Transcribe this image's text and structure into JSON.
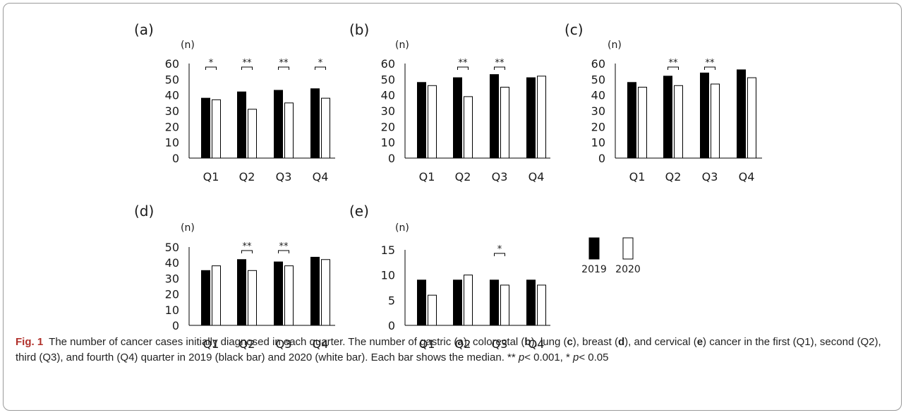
{
  "panels": [
    {
      "label": "(a)",
      "unit": "(n)"
    },
    {
      "label": "(b)",
      "unit": "(n)"
    },
    {
      "label": "(c)",
      "unit": "(n)"
    },
    {
      "label": "(d)",
      "unit": "(n)"
    },
    {
      "label": "(e)",
      "unit": "(n)"
    }
  ],
  "legend": {
    "label_2019": "2019",
    "label_2020": "2020"
  },
  "colors": {
    "bar_2019": "#000000",
    "bar_2020": "#ffffff",
    "bar_stroke": "#000000"
  },
  "chart_data": [
    {
      "type": "bar",
      "title": "(a)",
      "ylabel": "(n)",
      "categories": [
        "Q1",
        "Q2",
        "Q3",
        "Q4"
      ],
      "ylim": [
        0,
        60
      ],
      "yticks": [
        0,
        10,
        20,
        30,
        40,
        50,
        60
      ],
      "series": [
        {
          "name": "2019",
          "values": [
            38,
            42,
            43,
            44
          ]
        },
        {
          "name": "2020",
          "values": [
            37,
            31,
            35,
            38
          ]
        }
      ],
      "significance": [
        "*",
        "**",
        "**",
        "*"
      ]
    },
    {
      "type": "bar",
      "title": "(b)",
      "ylabel": "(n)",
      "categories": [
        "Q1",
        "Q2",
        "Q3",
        "Q4"
      ],
      "ylim": [
        0,
        60
      ],
      "yticks": [
        0,
        10,
        20,
        30,
        40,
        50,
        60
      ],
      "series": [
        {
          "name": "2019",
          "values": [
            48,
            51,
            53,
            51
          ]
        },
        {
          "name": "2020",
          "values": [
            46,
            39,
            45,
            52
          ]
        }
      ],
      "significance": [
        "",
        "**",
        "**",
        ""
      ]
    },
    {
      "type": "bar",
      "title": "(c)",
      "ylabel": "(n)",
      "categories": [
        "Q1",
        "Q2",
        "Q3",
        "Q4"
      ],
      "ylim": [
        0,
        60
      ],
      "yticks": [
        0,
        10,
        20,
        30,
        40,
        50,
        60
      ],
      "series": [
        {
          "name": "2019",
          "values": [
            48,
            52,
            54,
            56
          ]
        },
        {
          "name": "2020",
          "values": [
            45,
            46,
            47,
            51
          ]
        }
      ],
      "significance": [
        "",
        "**",
        "**",
        ""
      ]
    },
    {
      "type": "bar",
      "title": "(d)",
      "ylabel": "(n)",
      "categories": [
        "Q1",
        "Q2",
        "Q3",
        "Q4"
      ],
      "ylim": [
        0,
        50
      ],
      "yticks": [
        0,
        10,
        20,
        30,
        40,
        50
      ],
      "series": [
        {
          "name": "2019",
          "values": [
            35,
            42,
            40.5,
            43.5
          ]
        },
        {
          "name": "2020",
          "values": [
            38,
            35,
            38,
            42
          ]
        }
      ],
      "significance": [
        "",
        "**",
        "**",
        ""
      ]
    },
    {
      "type": "bar",
      "title": "(e)",
      "ylabel": "(n)",
      "categories": [
        "Q1",
        "Q2",
        "Q3",
        "Q4"
      ],
      "ylim": [
        0,
        15
      ],
      "yticks": [
        0,
        5,
        10,
        15
      ],
      "series": [
        {
          "name": "2019",
          "values": [
            9,
            9,
            9,
            9
          ]
        },
        {
          "name": "2020",
          "values": [
            6,
            10,
            8,
            8
          ]
        }
      ],
      "significance": [
        "",
        "",
        "*",
        ""
      ]
    }
  ],
  "caption": {
    "fig_label": "Fig. 1",
    "part1": "The number of cancer cases initially diagnosed in each quarter. The number of gastric (",
    "a": "a",
    "part2": "), colorectal (",
    "b": "b",
    "part3": "), lung (",
    "c": "c",
    "part4": "), breast (",
    "d": "d",
    "part5": "), and cervical (",
    "e": "e",
    "part6": ") cancer in the first (Q1), second (Q2), third (Q3), and fourth (Q4) quarter in 2019 (black bar) and 2020 (white bar). Each bar shows the median. ** ",
    "p1": "p",
    "part7": "< 0.001, * ",
    "p2": "p",
    "part8": "< 0.05"
  }
}
